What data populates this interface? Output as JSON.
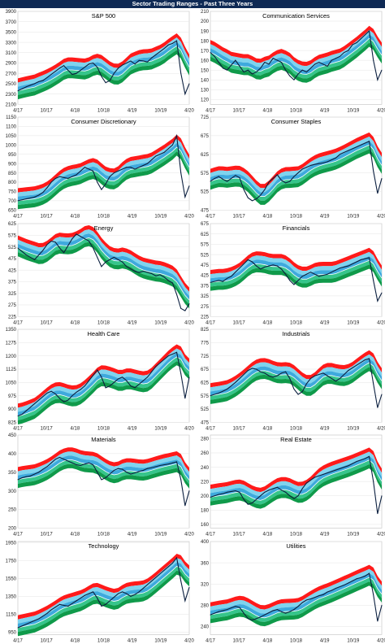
{
  "title": "Sector Trading Ranges - Past Three Years",
  "colors": {
    "title_bg": "#0f2a55",
    "price_line": "#0b1f3f",
    "band_red": "#ff1a1a",
    "band_light_blue": "#7fd3ee",
    "band_blue": "#3ea9dd",
    "band_light_green": "#36c58b",
    "band_green": "#0f9a4a",
    "moving_average": "#ffffff"
  },
  "chart_data": [
    {
      "type": "area",
      "title": "S&P 500",
      "x_ticks": [
        "4/17",
        "10/17",
        "4/18",
        "10/18",
        "4/19",
        "10/19",
        "4/20"
      ],
      "y_ticks": [
        2100,
        2300,
        2500,
        2700,
        2900,
        3100,
        3300,
        3500,
        3700,
        3900
      ],
      "ylim": [
        2100,
        3900
      ],
      "series": [
        {
          "values": [
            2360,
            2400,
            2440,
            2470,
            2500,
            2540,
            2560,
            2620,
            2680,
            2740,
            2800,
            2850,
            2760,
            2680,
            2700,
            2760,
            2820,
            2880,
            2900,
            2820,
            2640,
            2520,
            2560,
            2700,
            2800,
            2860,
            2900,
            2940,
            2880,
            2950,
            2940,
            2920,
            3000,
            3060,
            3120,
            3180,
            3250,
            3280,
            3330,
            2700,
            2300,
            2500
          ]
        }
      ]
    },
    {
      "type": "area",
      "title": "Communication Services",
      "x_ticks": [
        "4/17",
        "10/17",
        "4/18",
        "10/18",
        "4/19",
        "10/19",
        "4/20"
      ],
      "y_ticks": [
        120,
        130,
        140,
        150,
        160,
        170,
        180,
        190,
        200,
        210
      ],
      "ylim": [
        115,
        210
      ],
      "series": [
        {
          "values": [
            168,
            164,
            158,
            152,
            150,
            155,
            160,
            154,
            148,
            150,
            146,
            148,
            152,
            158,
            156,
            162,
            160,
            158,
            150,
            144,
            140,
            146,
            150,
            148,
            152,
            156,
            158,
            156,
            154,
            160,
            162,
            164,
            168,
            170,
            176,
            178,
            182,
            186,
            190,
            160,
            140,
            150
          ]
        }
      ]
    },
    {
      "type": "area",
      "title": "Consumer Discretionary",
      "x_ticks": [
        "4/17",
        "10/17",
        "4/18",
        "10/18",
        "4/19",
        "10/19",
        "4/20"
      ],
      "y_ticks": [
        650,
        700,
        750,
        800,
        850,
        900,
        950,
        1000,
        1050,
        1100,
        1150
      ],
      "ylim": [
        650,
        1150
      ],
      "series": [
        {
          "values": [
            700,
            705,
            710,
            715,
            720,
            730,
            745,
            770,
            800,
            820,
            830,
            825,
            820,
            830,
            840,
            860,
            880,
            870,
            860,
            800,
            760,
            790,
            830,
            850,
            860,
            870,
            880,
            880,
            870,
            880,
            890,
            900,
            920,
            940,
            950,
            960,
            980,
            1000,
            1050,
            850,
            720,
            780
          ]
        }
      ]
    },
    {
      "type": "area",
      "title": "Consumer Staples",
      "x_ticks": [
        "4/17",
        "10/17",
        "4/18",
        "10/18",
        "4/19",
        "10/19",
        "4/20"
      ],
      "y_ticks": [
        475,
        525,
        575,
        625,
        675,
        725
      ],
      "ylim": [
        475,
        725
      ],
      "series": [
        {
          "values": [
            552,
            560,
            565,
            558,
            552,
            560,
            568,
            562,
            530,
            508,
            500,
            505,
            515,
            530,
            550,
            560,
            570,
            555,
            548,
            552,
            565,
            575,
            585,
            590,
            595,
            598,
            600,
            602,
            605,
            610,
            615,
            625,
            630,
            635,
            640,
            645,
            650,
            655,
            660,
            580,
            520,
            560
          ]
        }
      ]
    },
    {
      "type": "area",
      "title": "Energy",
      "x_ticks": [
        "4/17",
        "10/17",
        "4/18",
        "10/18",
        "4/19",
        "10/19",
        "4/20"
      ],
      "y_ticks": [
        225,
        275,
        325,
        375,
        425,
        475,
        525,
        575,
        625
      ],
      "ylim": [
        225,
        625
      ],
      "series": [
        {
          "values": [
            520,
            505,
            490,
            480,
            470,
            490,
            510,
            535,
            550,
            545,
            520,
            500,
            530,
            560,
            580,
            570,
            560,
            550,
            520,
            480,
            440,
            460,
            470,
            480,
            470,
            460,
            440,
            430,
            420,
            415,
            420,
            415,
            410,
            400,
            405,
            395,
            380,
            370,
            320,
            260,
            250,
            280
          ]
        }
      ]
    },
    {
      "type": "area",
      "title": "Financials",
      "x_ticks": [
        "4/17",
        "10/17",
        "4/18",
        "10/18",
        "4/19",
        "10/19",
        "4/20"
      ],
      "y_ticks": [
        225,
        275,
        325,
        375,
        425,
        475,
        525,
        575,
        625,
        675
      ],
      "ylim": [
        225,
        675
      ],
      "series": [
        {
          "values": [
            390,
            395,
            400,
            395,
            410,
            420,
            440,
            460,
            480,
            500,
            490,
            470,
            455,
            465,
            470,
            475,
            470,
            455,
            430,
            400,
            380,
            400,
            420,
            430,
            440,
            430,
            420,
            425,
            430,
            440,
            450,
            460,
            465,
            470,
            480,
            490,
            500,
            505,
            510,
            400,
            300,
            340
          ]
        }
      ]
    },
    {
      "type": "area",
      "title": "Health Care",
      "x_ticks": [
        "4/17",
        "10/17",
        "4/18",
        "10/18",
        "4/19",
        "10/19",
        "4/20"
      ],
      "y_ticks": [
        825,
        900,
        975,
        1050,
        1125,
        1200,
        1275,
        1350
      ],
      "ylim": [
        825,
        1350
      ],
      "series": [
        {
          "values": [
            860,
            870,
            890,
            910,
            930,
            950,
            970,
            990,
            1000,
            985,
            960,
            940,
            950,
            975,
            995,
            1010,
            1030,
            1060,
            1090,
            1120,
            1080,
            1020,
            1030,
            1050,
            1070,
            1080,
            1060,
            1030,
            1020,
            1040,
            1060,
            1080,
            1110,
            1140,
            1160,
            1180,
            1200,
            1210,
            1220,
            1100,
            960,
            1080
          ]
        }
      ]
    },
    {
      "type": "area",
      "title": "Industrials",
      "x_ticks": [
        "4/17",
        "10/17",
        "4/18",
        "10/18",
        "4/19",
        "10/19",
        "4/20"
      ],
      "y_ticks": [
        475,
        525,
        575,
        625,
        675,
        725,
        775,
        825
      ],
      "ylim": [
        475,
        825
      ],
      "series": [
        {
          "values": [
            575,
            580,
            585,
            592,
            600,
            612,
            625,
            640,
            655,
            670,
            678,
            675,
            665,
            660,
            650,
            645,
            650,
            660,
            665,
            640,
            600,
            580,
            590,
            620,
            640,
            650,
            655,
            660,
            650,
            640,
            630,
            640,
            655,
            670,
            680,
            690,
            700,
            710,
            715,
            620,
            530,
            580
          ]
        }
      ]
    },
    {
      "type": "area",
      "title": "Materials",
      "x_ticks": [
        "4/17",
        "10/17",
        "4/18",
        "10/18",
        "4/19",
        "10/19",
        "4/20"
      ],
      "y_ticks": [
        200,
        250,
        300,
        350,
        400,
        450
      ],
      "ylim": [
        200,
        450
      ],
      "series": [
        {
          "values": [
            330,
            335,
            338,
            340,
            345,
            350,
            358,
            365,
            375,
            385,
            390,
            385,
            380,
            375,
            370,
            368,
            372,
            375,
            370,
            350,
            330,
            335,
            345,
            355,
            360,
            358,
            350,
            345,
            348,
            352,
            355,
            360,
            362,
            365,
            368,
            370,
            372,
            375,
            378,
            330,
            260,
            300
          ]
        }
      ]
    },
    {
      "type": "area",
      "title": "Real Estate",
      "x_ticks": [
        "4/17",
        "10/17",
        "4/18",
        "10/18",
        "4/19",
        "10/19",
        "4/20"
      ],
      "y_ticks": [
        160,
        180,
        200,
        220,
        240,
        260,
        280
      ],
      "ylim": [
        155,
        285
      ],
      "series": [
        {
          "values": [
            198,
            200,
            202,
            203,
            205,
            206,
            207,
            205,
            195,
            188,
            190,
            195,
            200,
            205,
            208,
            210,
            212,
            208,
            205,
            200,
            196,
            200,
            210,
            218,
            222,
            226,
            228,
            230,
            232,
            234,
            236,
            238,
            240,
            242,
            245,
            248,
            250,
            252,
            255,
            220,
            175,
            200
          ]
        }
      ]
    },
    {
      "type": "area",
      "title": "Technology",
      "x_ticks": [
        "4/17",
        "10/17",
        "4/18",
        "10/18",
        "4/19",
        "10/19",
        "4/20"
      ],
      "y_ticks": [
        950,
        1150,
        1350,
        1550,
        1750,
        1950
      ],
      "ylim": [
        925,
        1960
      ],
      "series": [
        {
          "values": [
            1000,
            1020,
            1040,
            1060,
            1080,
            1100,
            1130,
            1160,
            1200,
            1230,
            1260,
            1250,
            1240,
            1270,
            1300,
            1330,
            1360,
            1380,
            1400,
            1330,
            1240,
            1260,
            1300,
            1340,
            1380,
            1400,
            1380,
            1350,
            1370,
            1400,
            1440,
            1480,
            1520,
            1560,
            1600,
            1640,
            1680,
            1720,
            1780,
            1520,
            1300,
            1450
          ]
        }
      ]
    },
    {
      "type": "area",
      "title": "Utilities",
      "x_ticks": [
        "4/17",
        "10/17",
        "4/18",
        "10/18",
        "4/19",
        "10/19",
        "4/20"
      ],
      "y_ticks": [
        240,
        280,
        320,
        360,
        400
      ],
      "ylim": [
        225,
        400
      ],
      "series": [
        {
          "values": [
            262,
            265,
            268,
            270,
            272,
            275,
            278,
            276,
            265,
            255,
            252,
            255,
            258,
            262,
            266,
            270,
            272,
            268,
            265,
            268,
            272,
            278,
            285,
            290,
            292,
            295,
            298,
            300,
            305,
            308,
            312,
            315,
            318,
            322,
            326,
            330,
            332,
            335,
            340,
            300,
            250,
            280
          ]
        }
      ]
    }
  ]
}
